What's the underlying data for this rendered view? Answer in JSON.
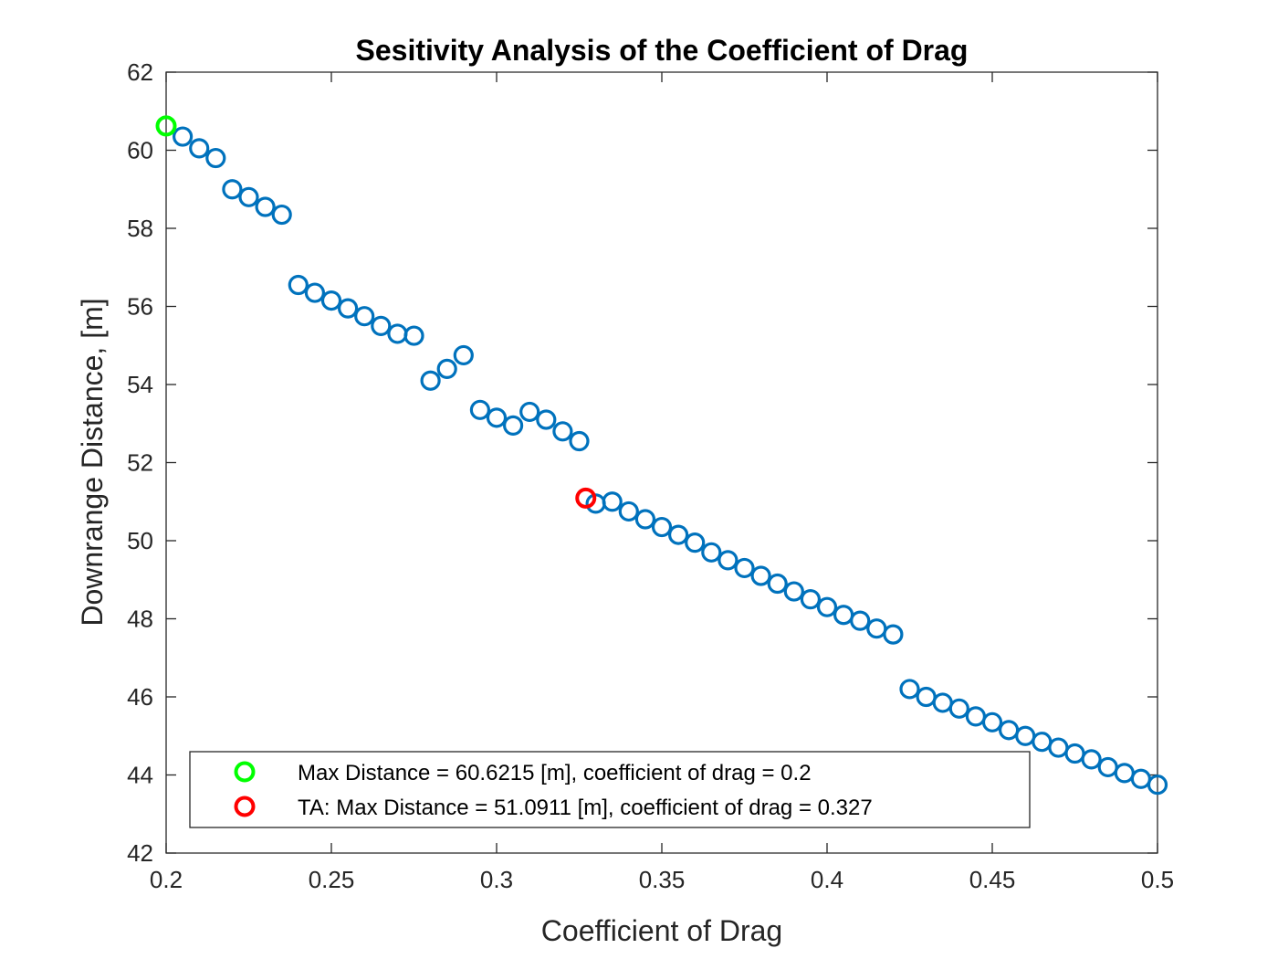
{
  "chart_data": {
    "type": "scatter",
    "title": "Sesitivity Analysis of the Coefficient of Drag",
    "xlabel": "Coefficient of Drag",
    "ylabel": "Downrange Distance, [m]",
    "xlim": [
      0.2,
      0.5
    ],
    "ylim": [
      42,
      62
    ],
    "xticks": [
      0.2,
      0.25,
      0.3,
      0.35,
      0.4,
      0.45,
      0.5
    ],
    "xtick_labels": [
      "0.2",
      "0.25",
      "0.3",
      "0.35",
      "0.4",
      "0.45",
      "0.5"
    ],
    "yticks": [
      42,
      44,
      46,
      48,
      50,
      52,
      54,
      56,
      58,
      60,
      62
    ],
    "ytick_labels": [
      "42",
      "44",
      "46",
      "48",
      "50",
      "52",
      "54",
      "56",
      "58",
      "60",
      "62"
    ],
    "grid": false,
    "legend_position": "bottom-left",
    "series": [
      {
        "color": "#0072bd",
        "marker": "circle-open",
        "x": [
          0.205,
          0.21,
          0.215,
          0.22,
          0.225,
          0.23,
          0.235,
          0.24,
          0.245,
          0.25,
          0.255,
          0.26,
          0.265,
          0.27,
          0.275,
          0.28,
          0.285,
          0.29,
          0.295,
          0.3,
          0.305,
          0.31,
          0.315,
          0.32,
          0.325,
          0.33,
          0.335,
          0.34,
          0.345,
          0.35,
          0.355,
          0.36,
          0.365,
          0.37,
          0.375,
          0.38,
          0.385,
          0.39,
          0.395,
          0.4,
          0.405,
          0.41,
          0.415,
          0.42,
          0.425,
          0.43,
          0.435,
          0.44,
          0.445,
          0.45,
          0.455,
          0.46,
          0.465,
          0.47,
          0.475,
          0.48,
          0.485,
          0.49,
          0.495,
          0.5
        ],
        "y": [
          60.35,
          60.05,
          59.8,
          59.0,
          58.8,
          58.55,
          58.35,
          56.55,
          56.35,
          56.15,
          55.95,
          55.75,
          55.5,
          55.3,
          55.25,
          54.1,
          54.4,
          54.75,
          53.35,
          53.15,
          52.95,
          53.3,
          53.1,
          52.8,
          52.55,
          50.95,
          51.0,
          50.75,
          50.55,
          50.35,
          50.15,
          49.95,
          49.7,
          49.5,
          49.3,
          49.1,
          48.9,
          48.7,
          48.5,
          48.3,
          48.1,
          47.95,
          47.75,
          47.6,
          46.2,
          46.0,
          45.85,
          45.7,
          45.5,
          45.35,
          45.15,
          45.0,
          44.85,
          44.7,
          44.55,
          44.4,
          44.2,
          44.05,
          43.9,
          43.75
        ]
      },
      {
        "name": "Max Distance = 60.6215 [m], coefficient of drag = 0.2",
        "color": "#00ff00",
        "marker": "circle-open",
        "x": [
          0.2
        ],
        "y": [
          60.6215
        ]
      },
      {
        "name": "TA: Max Distance = 51.0911 [m], coefficient of drag = 0.327",
        "color": "#ff0000",
        "marker": "circle-open",
        "x": [
          0.327
        ],
        "y": [
          51.0911
        ]
      }
    ]
  }
}
